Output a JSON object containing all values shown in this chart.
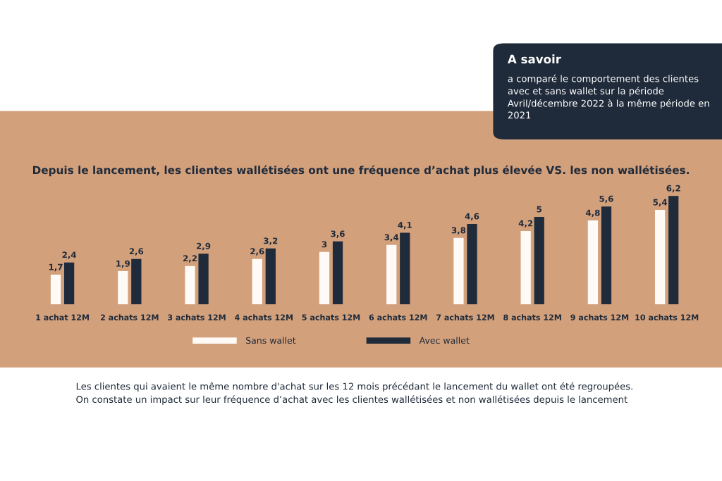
{
  "chart_data": {
    "type": "bar",
    "title": "Depuis le lancement, les clientes wallétisées ont une fréquence d’achat plus élevée VS. les non wallétisées.",
    "categories": [
      "1 achat 12M",
      "2 achats 12M",
      "3 achats 12M",
      "4 achats 12M",
      "5 achats 12M",
      "6 achats 12M",
      "7 achats 12M",
      "8 achats 12M",
      "9 achats 12M",
      "10 achats 12M"
    ],
    "series": [
      {
        "name": "Sans wallet",
        "color": "#fffaf5",
        "values": [
          1.7,
          1.9,
          2.2,
          2.6,
          3,
          3.4,
          3.8,
          4.2,
          4.8,
          5.4
        ],
        "value_labels": [
          "1,7",
          "1,9",
          "2,2",
          "2,6",
          "3",
          "3,4",
          "3,8",
          "4,2",
          "4,8",
          "5,4"
        ]
      },
      {
        "name": "Avec wallet",
        "color": "#1f2b3a",
        "values": [
          2.4,
          2.6,
          2.9,
          3.2,
          3.6,
          4.1,
          4.6,
          5,
          5.6,
          6.2
        ],
        "value_labels": [
          "2,4",
          "2,6",
          "2,9",
          "3,2",
          "3,6",
          "4,1",
          "4,6",
          "5",
          "5,6",
          "6,2"
        ]
      }
    ],
    "legend": "bottom",
    "annotations": [
      "A savoir",
      "a comparé le comportement des clientes avec et sans wallet sur la période Avril/décembre 2022 à la même période en 2021",
      "Les clientes qui avaient le même nombre d'achat sur les 12 mois précédant le lancement du wallet ont été regroupées.\nOn constate un impact sur leur fréquence d’achat avec les clientes wallétisées et non wallétisées depuis le lancement"
    ]
  }
}
